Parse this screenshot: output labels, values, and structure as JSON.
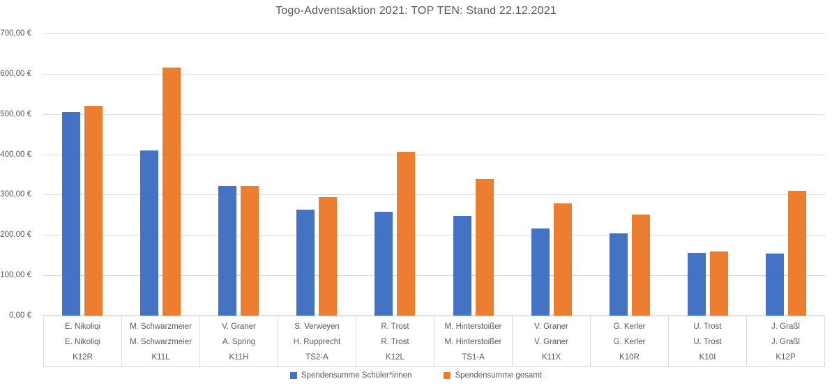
{
  "title": "Togo-Adventsaktion 2021: TOP TEN: Stand 22.12.2021",
  "colors": {
    "series_blue": "#4472C4",
    "series_orange": "#ED7D31",
    "gridline": "#D9D9D9",
    "axis_line": "#BFBFBF",
    "text": "#595959",
    "background": "#FFFFFF"
  },
  "chart_data": {
    "type": "bar",
    "title": "Togo-Adventsaktion 2021: TOP TEN: Stand 22.12.2021",
    "xlabel": "",
    "ylabel": "",
    "ylim": [
      0,
      700
    ],
    "y_tick_step": 100,
    "y_tick_labels": [
      "0,00 €",
      "100,00 €",
      "200,00 €",
      "300,00 €",
      "400,00 €",
      "500,00 €",
      "600,00 €",
      "700,00 €"
    ],
    "grid": true,
    "legend_position": "bottom",
    "categories": [
      {
        "line1": "E. Nikoliqi",
        "line2": "E. Nikoliqi",
        "line3": "K12R"
      },
      {
        "line1": "M. Schwarzmeier",
        "line2": "M. Schwarzmeier",
        "line3": "K11L"
      },
      {
        "line1": "V. Graner",
        "line2": "A. Spring",
        "line3": "K11H"
      },
      {
        "line1": "S. Verweyen",
        "line2": "H. Rupprecht",
        "line3": "TS2-A"
      },
      {
        "line1": "R. Trost",
        "line2": "R. Trost",
        "line3": "K12L"
      },
      {
        "line1": "M. Hinterstoißer",
        "line2": "M. Hinterstoißer",
        "line3": "TS1-A"
      },
      {
        "line1": "V. Graner",
        "line2": "V. Graner",
        "line3": "K11X"
      },
      {
        "line1": "G. Kerler",
        "line2": "G. Kerler",
        "line3": "K10R"
      },
      {
        "line1": "U. Trost",
        "line2": "U. Trost",
        "line3": "K10I"
      },
      {
        "line1": "J. Graßl",
        "line2": "J. Graßl",
        "line3": "K12P"
      }
    ],
    "series": [
      {
        "name": "Spendensumme Schüler*innen",
        "color": "#4472C4",
        "values": [
          505,
          409,
          322,
          263,
          257,
          248,
          216,
          204,
          156,
          154
        ]
      },
      {
        "name": "Spendensumme gesamt",
        "color": "#ED7D31",
        "values": [
          520,
          616,
          322,
          293,
          407,
          338,
          279,
          250,
          159,
          309
        ]
      }
    ]
  }
}
